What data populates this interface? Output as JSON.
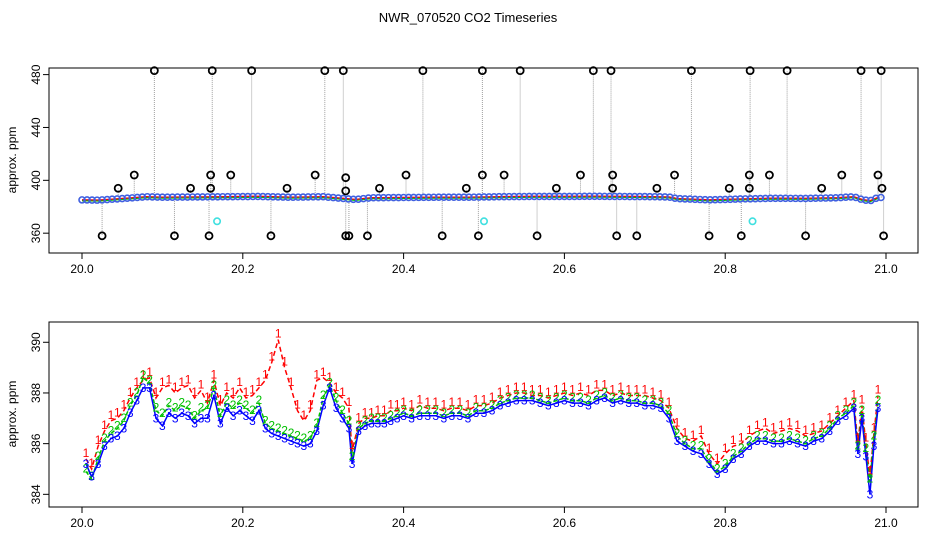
{
  "title": "NWR_070520  CO2 Timeseries",
  "colors": {
    "series_1": "#ff0000",
    "series_2": "#00c000",
    "series_3": "#0000ff",
    "outlier": "#000000",
    "flag": "#40e0e0",
    "trace": "#a0a0a0",
    "dots": "#4060e0"
  },
  "chart_data": [
    {
      "type": "scatter",
      "ylabel": "approx. ppm",
      "xlim": [
        20.0,
        21.0
      ],
      "ylim": [
        345,
        485
      ],
      "x_ticks": [
        "20.0",
        "20.2",
        "20.4",
        "20.6",
        "20.8",
        "21.0"
      ],
      "x_tick_values": [
        20.0,
        20.2,
        20.4,
        20.6,
        20.8,
        21.0
      ],
      "y_ticks": [
        "360",
        "400",
        "440",
        "480"
      ],
      "y_tick_values": [
        360,
        400,
        440,
        480
      ],
      "baseline": [
        [
          20.0,
          385.2
        ],
        [
          20.02,
          385.0
        ],
        [
          20.04,
          385.8
        ],
        [
          20.06,
          386.6
        ],
        [
          20.08,
          387.6
        ],
        [
          20.1,
          387.2
        ],
        [
          20.14,
          387.4
        ],
        [
          20.18,
          387.6
        ],
        [
          20.22,
          387.8
        ],
        [
          20.26,
          387.2
        ],
        [
          20.3,
          387.6
        ],
        [
          20.33,
          386.0
        ],
        [
          20.34,
          385.5
        ],
        [
          20.36,
          386.8
        ],
        [
          20.4,
          387.0
        ],
        [
          20.44,
          387.2
        ],
        [
          20.48,
          387.2
        ],
        [
          20.52,
          387.6
        ],
        [
          20.56,
          387.8
        ],
        [
          20.6,
          387.8
        ],
        [
          20.64,
          387.9
        ],
        [
          20.66,
          387.8
        ],
        [
          20.7,
          387.7
        ],
        [
          20.73,
          387.4
        ],
        [
          20.74,
          386.2
        ],
        [
          20.78,
          385.2
        ],
        [
          20.82,
          385.9
        ],
        [
          20.86,
          386.4
        ],
        [
          20.9,
          386.3
        ],
        [
          20.94,
          386.8
        ],
        [
          20.96,
          387.6
        ],
        [
          20.97,
          385.5
        ],
        [
          20.98,
          384.5
        ],
        [
          20.99,
          387.0
        ]
      ],
      "high_outliers": [
        20.09,
        20.162,
        20.211,
        20.302,
        20.325,
        20.424,
        20.498,
        20.545,
        20.636,
        20.658,
        20.758,
        20.831,
        20.877,
        20.969,
        20.994
      ],
      "high_outlier_value": 483,
      "mid_outliers": [
        [
          20.045,
          394
        ],
        [
          20.065,
          404
        ],
        [
          20.135,
          394
        ],
        [
          20.16,
          404
        ],
        [
          20.16,
          394
        ],
        [
          20.185,
          404
        ],
        [
          20.255,
          394
        ],
        [
          20.29,
          404
        ],
        [
          20.328,
          402
        ],
        [
          20.328,
          392
        ],
        [
          20.37,
          394
        ],
        [
          20.403,
          404
        ],
        [
          20.478,
          394
        ],
        [
          20.498,
          404
        ],
        [
          20.525,
          404
        ],
        [
          20.59,
          394
        ],
        [
          20.62,
          404
        ],
        [
          20.66,
          404
        ],
        [
          20.66,
          394
        ],
        [
          20.715,
          394
        ],
        [
          20.737,
          404
        ],
        [
          20.805,
          394
        ],
        [
          20.83,
          404
        ],
        [
          20.83,
          394
        ],
        [
          20.855,
          404
        ],
        [
          20.92,
          394
        ],
        [
          20.945,
          404
        ],
        [
          20.99,
          404
        ],
        [
          20.995,
          394
        ]
      ],
      "low_outliers": [
        20.025,
        20.115,
        20.158,
        20.235,
        20.328,
        20.332,
        20.355,
        20.448,
        20.493,
        20.566,
        20.665,
        20.69,
        20.78,
        20.82,
        20.9,
        20.997
      ],
      "low_outlier_value": 358,
      "flags": [
        [
          20.168,
          369
        ],
        [
          20.5,
          369
        ],
        [
          20.834,
          369
        ]
      ]
    },
    {
      "type": "line",
      "ylabel": "approx. ppm",
      "xlim": [
        20.0,
        21.0
      ],
      "ylim": [
        383.5,
        390.8
      ],
      "x_ticks": [
        "20.0",
        "20.2",
        "20.4",
        "20.6",
        "20.8",
        "21.0"
      ],
      "x_tick_values": [
        20.0,
        20.2,
        20.4,
        20.6,
        20.8,
        21.0
      ],
      "y_ticks": [
        "384",
        "386",
        "388",
        "390"
      ],
      "y_tick_values": [
        384,
        386,
        388,
        390
      ],
      "series": [
        {
          "label_glyph": "1",
          "x": [
            20.005,
            20.012,
            20.02,
            20.028,
            20.036,
            20.044,
            20.052,
            20.06,
            20.068,
            20.076,
            20.084,
            20.092,
            20.1,
            20.108,
            20.116,
            20.124,
            20.132,
            20.14,
            20.148,
            20.156,
            20.164,
            20.172,
            20.18,
            20.188,
            20.196,
            20.204,
            20.212,
            20.22,
            20.228,
            20.236,
            20.244,
            20.252,
            20.26,
            20.268,
            20.276,
            20.284,
            20.292,
            20.3,
            20.308,
            20.316,
            20.324,
            20.332,
            20.336,
            20.344,
            20.352,
            20.36,
            20.368,
            20.376,
            20.384,
            20.392,
            20.4,
            20.41,
            20.42,
            20.43,
            20.44,
            20.45,
            20.46,
            20.47,
            20.48,
            20.49,
            20.5,
            20.51,
            20.52,
            20.53,
            20.54,
            20.55,
            20.56,
            20.57,
            20.58,
            20.59,
            20.6,
            20.61,
            20.62,
            20.63,
            20.64,
            20.65,
            20.66,
            20.67,
            20.68,
            20.69,
            20.7,
            20.71,
            20.72,
            20.73,
            20.74,
            20.75,
            20.76,
            20.77,
            20.78,
            20.79,
            20.8,
            20.81,
            20.82,
            20.83,
            20.84,
            20.85,
            20.86,
            20.87,
            20.88,
            20.89,
            20.9,
            20.91,
            20.92,
            20.93,
            20.94,
            20.95,
            20.96,
            20.965,
            20.97,
            20.975,
            20.98,
            20.985,
            20.99
          ],
          "values": [
            385.4,
            385.0,
            385.9,
            386.5,
            386.9,
            387.0,
            387.3,
            387.8,
            388.2,
            388.5,
            388.6,
            387.8,
            388.2,
            388.3,
            388.0,
            388.2,
            388.3,
            387.8,
            388.1,
            387.6,
            388.5,
            387.5,
            388.0,
            387.8,
            388.2,
            387.8,
            387.9,
            388.2,
            388.5,
            389.2,
            390.1,
            389.0,
            388.2,
            387.3,
            386.9,
            387.3,
            388.5,
            388.6,
            388.4,
            388.0,
            387.8,
            387.4,
            385.7,
            386.8,
            387.0,
            387.0,
            387.1,
            387.1,
            387.3,
            387.3,
            387.4,
            387.3,
            387.5,
            387.4,
            387.4,
            387.3,
            387.4,
            387.4,
            387.3,
            387.5,
            387.5,
            387.6,
            387.8,
            387.9,
            388.0,
            388.0,
            387.9,
            387.9,
            387.8,
            387.9,
            388.0,
            387.9,
            388.0,
            387.9,
            388.1,
            388.1,
            387.9,
            388.0,
            387.9,
            387.9,
            387.9,
            387.8,
            387.7,
            387.4,
            386.6,
            386.2,
            386.1,
            386.3,
            385.6,
            385.2,
            385.6,
            385.9,
            386.0,
            386.3,
            386.5,
            386.6,
            386.4,
            386.5,
            386.6,
            386.5,
            386.3,
            386.4,
            386.5,
            386.8,
            387.1,
            387.4,
            387.7,
            386.0,
            387.5,
            386.0,
            384.7,
            386.4,
            387.9
          ]
        },
        {
          "label_glyph": "2",
          "x": [
            20.005,
            20.012,
            20.02,
            20.028,
            20.036,
            20.044,
            20.052,
            20.06,
            20.068,
            20.076,
            20.084,
            20.092,
            20.1,
            20.108,
            20.116,
            20.124,
            20.132,
            20.14,
            20.148,
            20.156,
            20.164,
            20.172,
            20.18,
            20.188,
            20.196,
            20.204,
            20.212,
            20.22,
            20.228,
            20.236,
            20.244,
            20.252,
            20.26,
            20.268,
            20.276,
            20.284,
            20.292,
            20.3,
            20.308,
            20.316,
            20.324,
            20.332,
            20.336,
            20.344,
            20.352,
            20.36,
            20.368,
            20.376,
            20.384,
            20.392,
            20.4,
            20.41,
            20.42,
            20.43,
            20.44,
            20.45,
            20.46,
            20.47,
            20.48,
            20.49,
            20.5,
            20.51,
            20.52,
            20.53,
            20.54,
            20.55,
            20.56,
            20.57,
            20.58,
            20.59,
            20.6,
            20.61,
            20.62,
            20.63,
            20.64,
            20.65,
            20.66,
            20.67,
            20.68,
            20.69,
            20.7,
            20.71,
            20.72,
            20.73,
            20.74,
            20.75,
            20.76,
            20.77,
            20.78,
            20.79,
            20.8,
            20.81,
            20.82,
            20.83,
            20.84,
            20.85,
            20.86,
            20.87,
            20.88,
            20.89,
            20.9,
            20.91,
            20.92,
            20.93,
            20.94,
            20.95,
            20.96,
            20.965,
            20.97,
            20.975,
            20.98,
            20.985,
            20.99
          ],
          "values": [
            384.9,
            384.6,
            385.4,
            386.1,
            386.4,
            386.6,
            386.9,
            387.5,
            387.9,
            388.6,
            388.4,
            387.3,
            387.1,
            387.5,
            387.3,
            387.5,
            387.4,
            387.0,
            387.3,
            387.4,
            388.2,
            387.1,
            387.6,
            387.4,
            387.6,
            387.4,
            387.2,
            387.6,
            386.8,
            386.6,
            386.5,
            386.4,
            386.3,
            386.2,
            386.1,
            386.2,
            386.7,
            387.8,
            388.3,
            387.7,
            387.2,
            386.8,
            385.4,
            386.6,
            386.8,
            386.9,
            386.9,
            386.9,
            387.0,
            387.1,
            387.2,
            387.1,
            387.2,
            387.2,
            387.2,
            387.1,
            387.2,
            387.2,
            387.1,
            387.3,
            387.3,
            387.4,
            387.6,
            387.7,
            387.8,
            387.8,
            387.8,
            387.7,
            387.6,
            387.7,
            387.8,
            387.7,
            387.7,
            387.6,
            387.8,
            387.9,
            387.7,
            387.8,
            387.7,
            387.7,
            387.6,
            387.6,
            387.5,
            387.2,
            386.3,
            386.0,
            385.8,
            385.8,
            385.3,
            384.9,
            385.1,
            385.5,
            385.7,
            386.0,
            386.2,
            386.2,
            386.1,
            386.1,
            386.2,
            386.1,
            386.0,
            386.2,
            386.3,
            386.6,
            387.0,
            387.2,
            387.5,
            385.8,
            387.2,
            385.7,
            384.5,
            386.2,
            387.6
          ]
        },
        {
          "label_glyph": "3",
          "x": [
            20.005,
            20.012,
            20.02,
            20.028,
            20.036,
            20.044,
            20.052,
            20.06,
            20.068,
            20.076,
            20.084,
            20.092,
            20.1,
            20.108,
            20.116,
            20.124,
            20.132,
            20.14,
            20.148,
            20.156,
            20.164,
            20.172,
            20.18,
            20.188,
            20.196,
            20.204,
            20.212,
            20.22,
            20.228,
            20.236,
            20.244,
            20.252,
            20.26,
            20.268,
            20.276,
            20.284,
            20.292,
            20.3,
            20.308,
            20.316,
            20.324,
            20.332,
            20.336,
            20.344,
            20.352,
            20.36,
            20.368,
            20.376,
            20.384,
            20.392,
            20.4,
            20.41,
            20.42,
            20.43,
            20.44,
            20.45,
            20.46,
            20.47,
            20.48,
            20.49,
            20.5,
            20.51,
            20.52,
            20.53,
            20.54,
            20.55,
            20.56,
            20.57,
            20.58,
            20.59,
            20.6,
            20.61,
            20.62,
            20.63,
            20.64,
            20.65,
            20.66,
            20.67,
            20.68,
            20.69,
            20.7,
            20.71,
            20.72,
            20.73,
            20.74,
            20.75,
            20.76,
            20.77,
            20.78,
            20.79,
            20.8,
            20.81,
            20.82,
            20.83,
            20.84,
            20.85,
            20.86,
            20.87,
            20.88,
            20.89,
            20.9,
            20.91,
            20.92,
            20.93,
            20.94,
            20.95,
            20.96,
            20.965,
            20.97,
            20.975,
            20.98,
            20.985,
            20.99
          ],
          "values": [
            385.2,
            384.7,
            385.2,
            385.9,
            386.2,
            386.3,
            386.6,
            387.2,
            387.7,
            388.2,
            388.2,
            387.0,
            386.7,
            387.2,
            387.0,
            387.2,
            387.1,
            386.8,
            387.0,
            387.0,
            387.9,
            386.8,
            387.4,
            387.1,
            387.3,
            387.1,
            386.9,
            387.3,
            386.6,
            386.4,
            386.3,
            386.2,
            386.1,
            386.0,
            385.9,
            386.0,
            386.5,
            387.5,
            388.2,
            387.4,
            387.0,
            386.6,
            385.2,
            386.5,
            386.7,
            386.8,
            386.8,
            386.8,
            386.9,
            387.0,
            387.1,
            387.0,
            387.1,
            387.1,
            387.1,
            387.0,
            387.1,
            387.1,
            387.0,
            387.2,
            387.2,
            387.3,
            387.5,
            387.6,
            387.7,
            387.7,
            387.7,
            387.6,
            387.5,
            387.6,
            387.7,
            387.6,
            387.6,
            387.5,
            387.7,
            387.8,
            387.6,
            387.7,
            387.6,
            387.6,
            387.5,
            387.5,
            387.4,
            387.0,
            386.1,
            385.9,
            385.7,
            385.6,
            385.2,
            384.8,
            385.0,
            385.4,
            385.6,
            385.9,
            386.1,
            386.1,
            386.0,
            386.0,
            386.1,
            386.0,
            385.9,
            386.1,
            386.2,
            386.5,
            386.9,
            387.1,
            387.4,
            385.6,
            387.0,
            385.5,
            384.0,
            385.9,
            387.4
          ]
        }
      ]
    }
  ]
}
